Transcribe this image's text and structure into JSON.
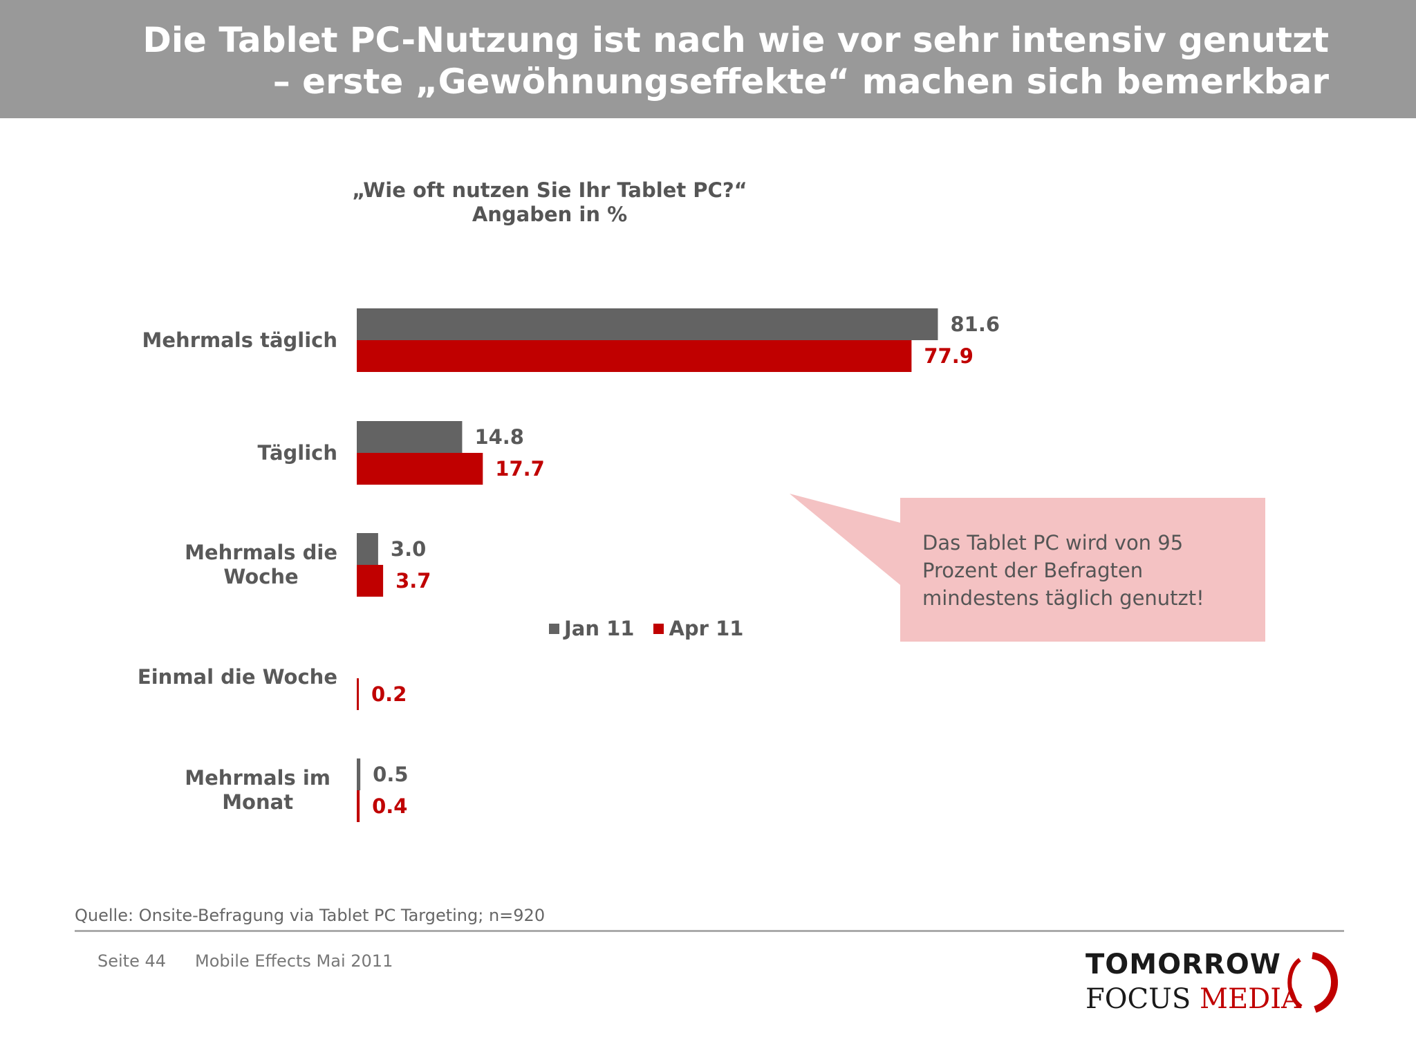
{
  "header": {
    "title_line1": "Die Tablet PC-Nutzung ist nach wie vor sehr intensiv genutzt",
    "title_line2": "– erste „Gewöhnungseffekte“ machen sich bemerkbar"
  },
  "chart_data": {
    "type": "bar",
    "orientation": "horizontal",
    "title": "„Wie oft nutzen Sie Ihr Tablet PC?“",
    "subtitle": "Angaben in %",
    "categories": [
      [
        "Mehrmals täglich"
      ],
      [
        "Täglich"
      ],
      [
        "Mehrmals die",
        "Woche"
      ],
      [
        "Einmal die Woche"
      ],
      [
        "Mehrmals im",
        "Monat"
      ]
    ],
    "series": [
      {
        "name": "Jan 11",
        "color": "#636363",
        "values": [
          81.6,
          14.8,
          3.0,
          null,
          0.5
        ],
        "labels": [
          "81.6",
          "14.8",
          "3.0",
          "",
          "0.5"
        ]
      },
      {
        "name": "Apr 11",
        "color": "#c00000",
        "values": [
          77.9,
          17.7,
          3.7,
          0.2,
          0.4
        ],
        "labels": [
          "77.9",
          "17.7",
          "3.7",
          "0.2",
          "0.4"
        ]
      }
    ],
    "legend_position": "bottom-center",
    "grid": false
  },
  "callout": {
    "text_lines": [
      "Das Tablet PC wird von 95",
      "Prozent der Befragten",
      "mindestens täglich genutzt!"
    ],
    "fill": "#f4c2c3"
  },
  "source": "Quelle: Onsite-Befragung via Tablet PC Targeting; n=920",
  "footer": {
    "page": "Seite 44",
    "info": "Mobile Effects Mai 2011"
  },
  "logo": {
    "line1": "TOMORROW",
    "line2_a": "FOCUS",
    "line2_b": "MEDIA"
  }
}
